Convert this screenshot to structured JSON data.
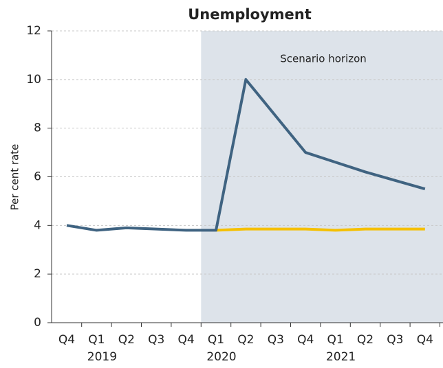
{
  "chart_data": {
    "type": "line",
    "title": "Unemployment",
    "ylabel": "Per cent rate",
    "categories": [
      "Q4",
      "Q1",
      "Q2",
      "Q3",
      "Q4",
      "Q1",
      "Q2",
      "Q3",
      "Q4",
      "Q1",
      "Q2",
      "Q3",
      "Q4"
    ],
    "year_labels": [
      null,
      "2019",
      null,
      null,
      null,
      "2020",
      null,
      null,
      null,
      "2021",
      null,
      null,
      null
    ],
    "series": [
      {
        "color": "#f5c000",
        "values": [
          null,
          null,
          null,
          null,
          null,
          3.8,
          3.85,
          3.85,
          3.85,
          3.8,
          3.85,
          3.85,
          3.85
        ]
      },
      {
        "color": "#3f6381",
        "values": [
          4.0,
          3.8,
          3.9,
          3.85,
          3.8,
          3.8,
          10.0,
          8.5,
          7.0,
          6.6,
          6.2,
          5.85,
          5.5
        ]
      }
    ],
    "shaded_region": {
      "label": "Scenario horizon",
      "from": 5,
      "color": "#dde3ea"
    },
    "ylim": [
      0,
      12
    ],
    "yticks": [
      0,
      2,
      4,
      6,
      8,
      10,
      12
    ],
    "grid": true
  }
}
